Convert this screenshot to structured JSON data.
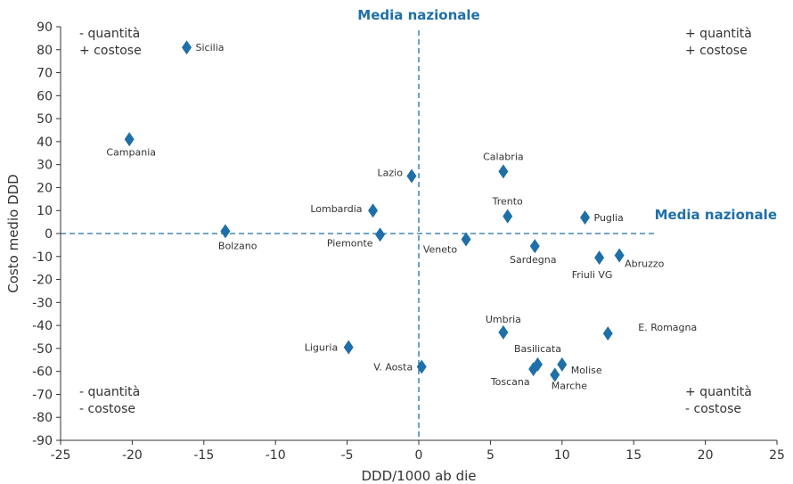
{
  "chart_data": {
    "type": "scatter",
    "xlabel": "DDD/1000 ab die",
    "ylabel": "Costo medio DDD",
    "xlim": [
      -25,
      25
    ],
    "ylim": [
      -90,
      90
    ],
    "x_ticks": [
      -25,
      -20,
      -15,
      -10,
      -5,
      0,
      5,
      10,
      15,
      20,
      25
    ],
    "y_ticks": [
      90,
      80,
      70,
      60,
      50,
      40,
      30,
      20,
      10,
      0,
      -10,
      -20,
      -30,
      -40,
      -50,
      -60,
      -70,
      -80,
      -90
    ],
    "grid": false,
    "marker_color": "#1f6fa8",
    "reference_lines": {
      "vertical": {
        "x": 0,
        "label": "Media nazionale"
      },
      "horizontal": {
        "y": 0,
        "label": "Media nazionale"
      }
    },
    "quadrants": {
      "top_left": [
        "- quantità",
        "+ costose"
      ],
      "top_right": [
        "+ quantità",
        "+ costose"
      ],
      "bottom_left": [
        "- quantità",
        "- costose"
      ],
      "bottom_right": [
        "+ quantità",
        "- costose"
      ]
    },
    "points": [
      {
        "label": "Sicilia",
        "x": -16.2,
        "y": 81
      },
      {
        "label": "Campania",
        "x": -20.2,
        "y": 41
      },
      {
        "label": "Bolzano",
        "x": -13.5,
        "y": 1
      },
      {
        "label": "Lombardia",
        "x": -3.2,
        "y": 10
      },
      {
        "label": "Piemonte",
        "x": -2.7,
        "y": -0.5
      },
      {
        "label": "Lazio",
        "x": -0.5,
        "y": 25
      },
      {
        "label": "Liguria",
        "x": -4.9,
        "y": -49.5
      },
      {
        "label": "V. Aosta",
        "x": 0.2,
        "y": -58
      },
      {
        "label": "Calabria",
        "x": 5.9,
        "y": 27
      },
      {
        "label": "Trento",
        "x": 6.2,
        "y": 7.5
      },
      {
        "label": "Veneto",
        "x": 3.3,
        "y": -2.5
      },
      {
        "label": "Sardegna",
        "x": 8.1,
        "y": -5.5
      },
      {
        "label": "Puglia",
        "x": 11.6,
        "y": 7
      },
      {
        "label": "Friuli VG",
        "x": 12.6,
        "y": -10.5
      },
      {
        "label": "Abruzzo",
        "x": 14,
        "y": -9.5
      },
      {
        "label": "Umbria",
        "x": 5.9,
        "y": -43
      },
      {
        "label": "E. Romagna",
        "x": 13.2,
        "y": -43.5
      },
      {
        "label": "Basilicata",
        "x": 8.3,
        "y": -57
      },
      {
        "label": "Toscana",
        "x": 8,
        "y": -59
      },
      {
        "label": "Molise",
        "x": 10,
        "y": -57
      },
      {
        "label": "Marche",
        "x": 9.5,
        "y": -61.5
      }
    ]
  }
}
